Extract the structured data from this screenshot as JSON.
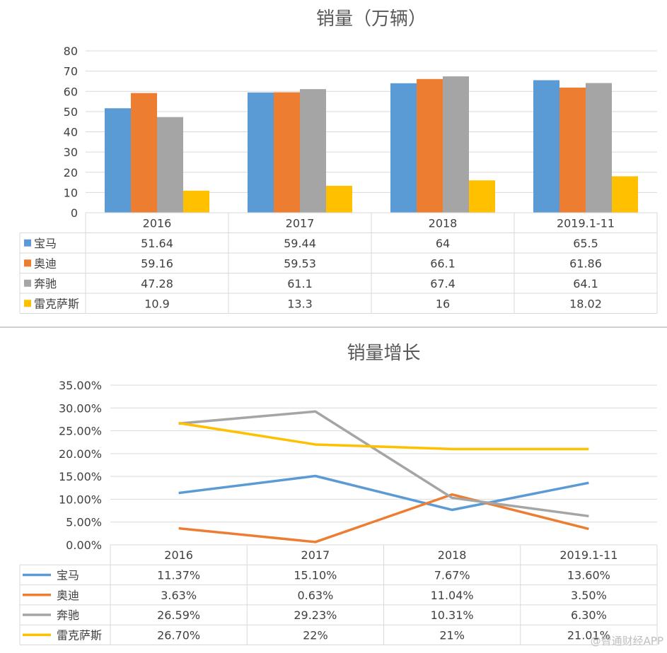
{
  "watermark": "@智通财经APP",
  "chart_data": [
    {
      "type": "bar",
      "title": "销量（万辆）",
      "categories": [
        "2016",
        "2017",
        "2018",
        "2019.1-11"
      ],
      "ylim": [
        0,
        80
      ],
      "yticks": [
        "0",
        "10",
        "20",
        "30",
        "40",
        "50",
        "60",
        "70",
        "80"
      ],
      "grid": true,
      "legend_placement": "data-table",
      "series": [
        {
          "name": "宝马",
          "color": "#5B9BD5",
          "values": [
            51.64,
            59.44,
            64,
            65.5
          ],
          "labels": [
            "51.64",
            "59.44",
            "64",
            "65.5"
          ]
        },
        {
          "name": "奥迪",
          "color": "#ED7D31",
          "values": [
            59.16,
            59.53,
            66.1,
            61.86
          ],
          "labels": [
            "59.16",
            "59.53",
            "66.1",
            "61.86"
          ]
        },
        {
          "name": "奔驰",
          "color": "#A5A5A5",
          "values": [
            47.28,
            61.1,
            67.4,
            64.1
          ],
          "labels": [
            "47.28",
            "61.1",
            "67.4",
            "64.1"
          ]
        },
        {
          "name": "雷克萨斯",
          "color": "#FFC000",
          "values": [
            10.9,
            13.3,
            16,
            18.02
          ],
          "labels": [
            "10.9",
            "13.3",
            "16",
            "18.02"
          ]
        }
      ]
    },
    {
      "type": "line",
      "title": "销量增长",
      "categories": [
        "2016",
        "2017",
        "2018",
        "2019.1-11"
      ],
      "ylim": [
        0,
        35
      ],
      "yticks": [
        "0.00%",
        "5.00%",
        "10.00%",
        "15.00%",
        "20.00%",
        "25.00%",
        "30.00%",
        "35.00%"
      ],
      "grid": true,
      "legend_placement": "data-table",
      "series": [
        {
          "name": "宝马",
          "color": "#5B9BD5",
          "values": [
            11.37,
            15.1,
            7.67,
            13.6
          ],
          "labels": [
            "11.37%",
            "15.10%",
            "7.67%",
            "13.60%"
          ]
        },
        {
          "name": "奥迪",
          "color": "#ED7D31",
          "values": [
            3.63,
            0.63,
            11.04,
            3.5
          ],
          "labels": [
            "3.63%",
            "0.63%",
            "11.04%",
            "3.50%"
          ]
        },
        {
          "name": "奔驰",
          "color": "#A5A5A5",
          "values": [
            26.59,
            29.23,
            10.31,
            6.3
          ],
          "labels": [
            "26.59%",
            "29.23%",
            "10.31%",
            "6.30%"
          ]
        },
        {
          "name": "雷克萨斯",
          "color": "#FFC000",
          "values": [
            26.7,
            22,
            21,
            21.01
          ],
          "labels": [
            "26.70%",
            "22%",
            "21%",
            "21.01%"
          ]
        }
      ]
    }
  ]
}
